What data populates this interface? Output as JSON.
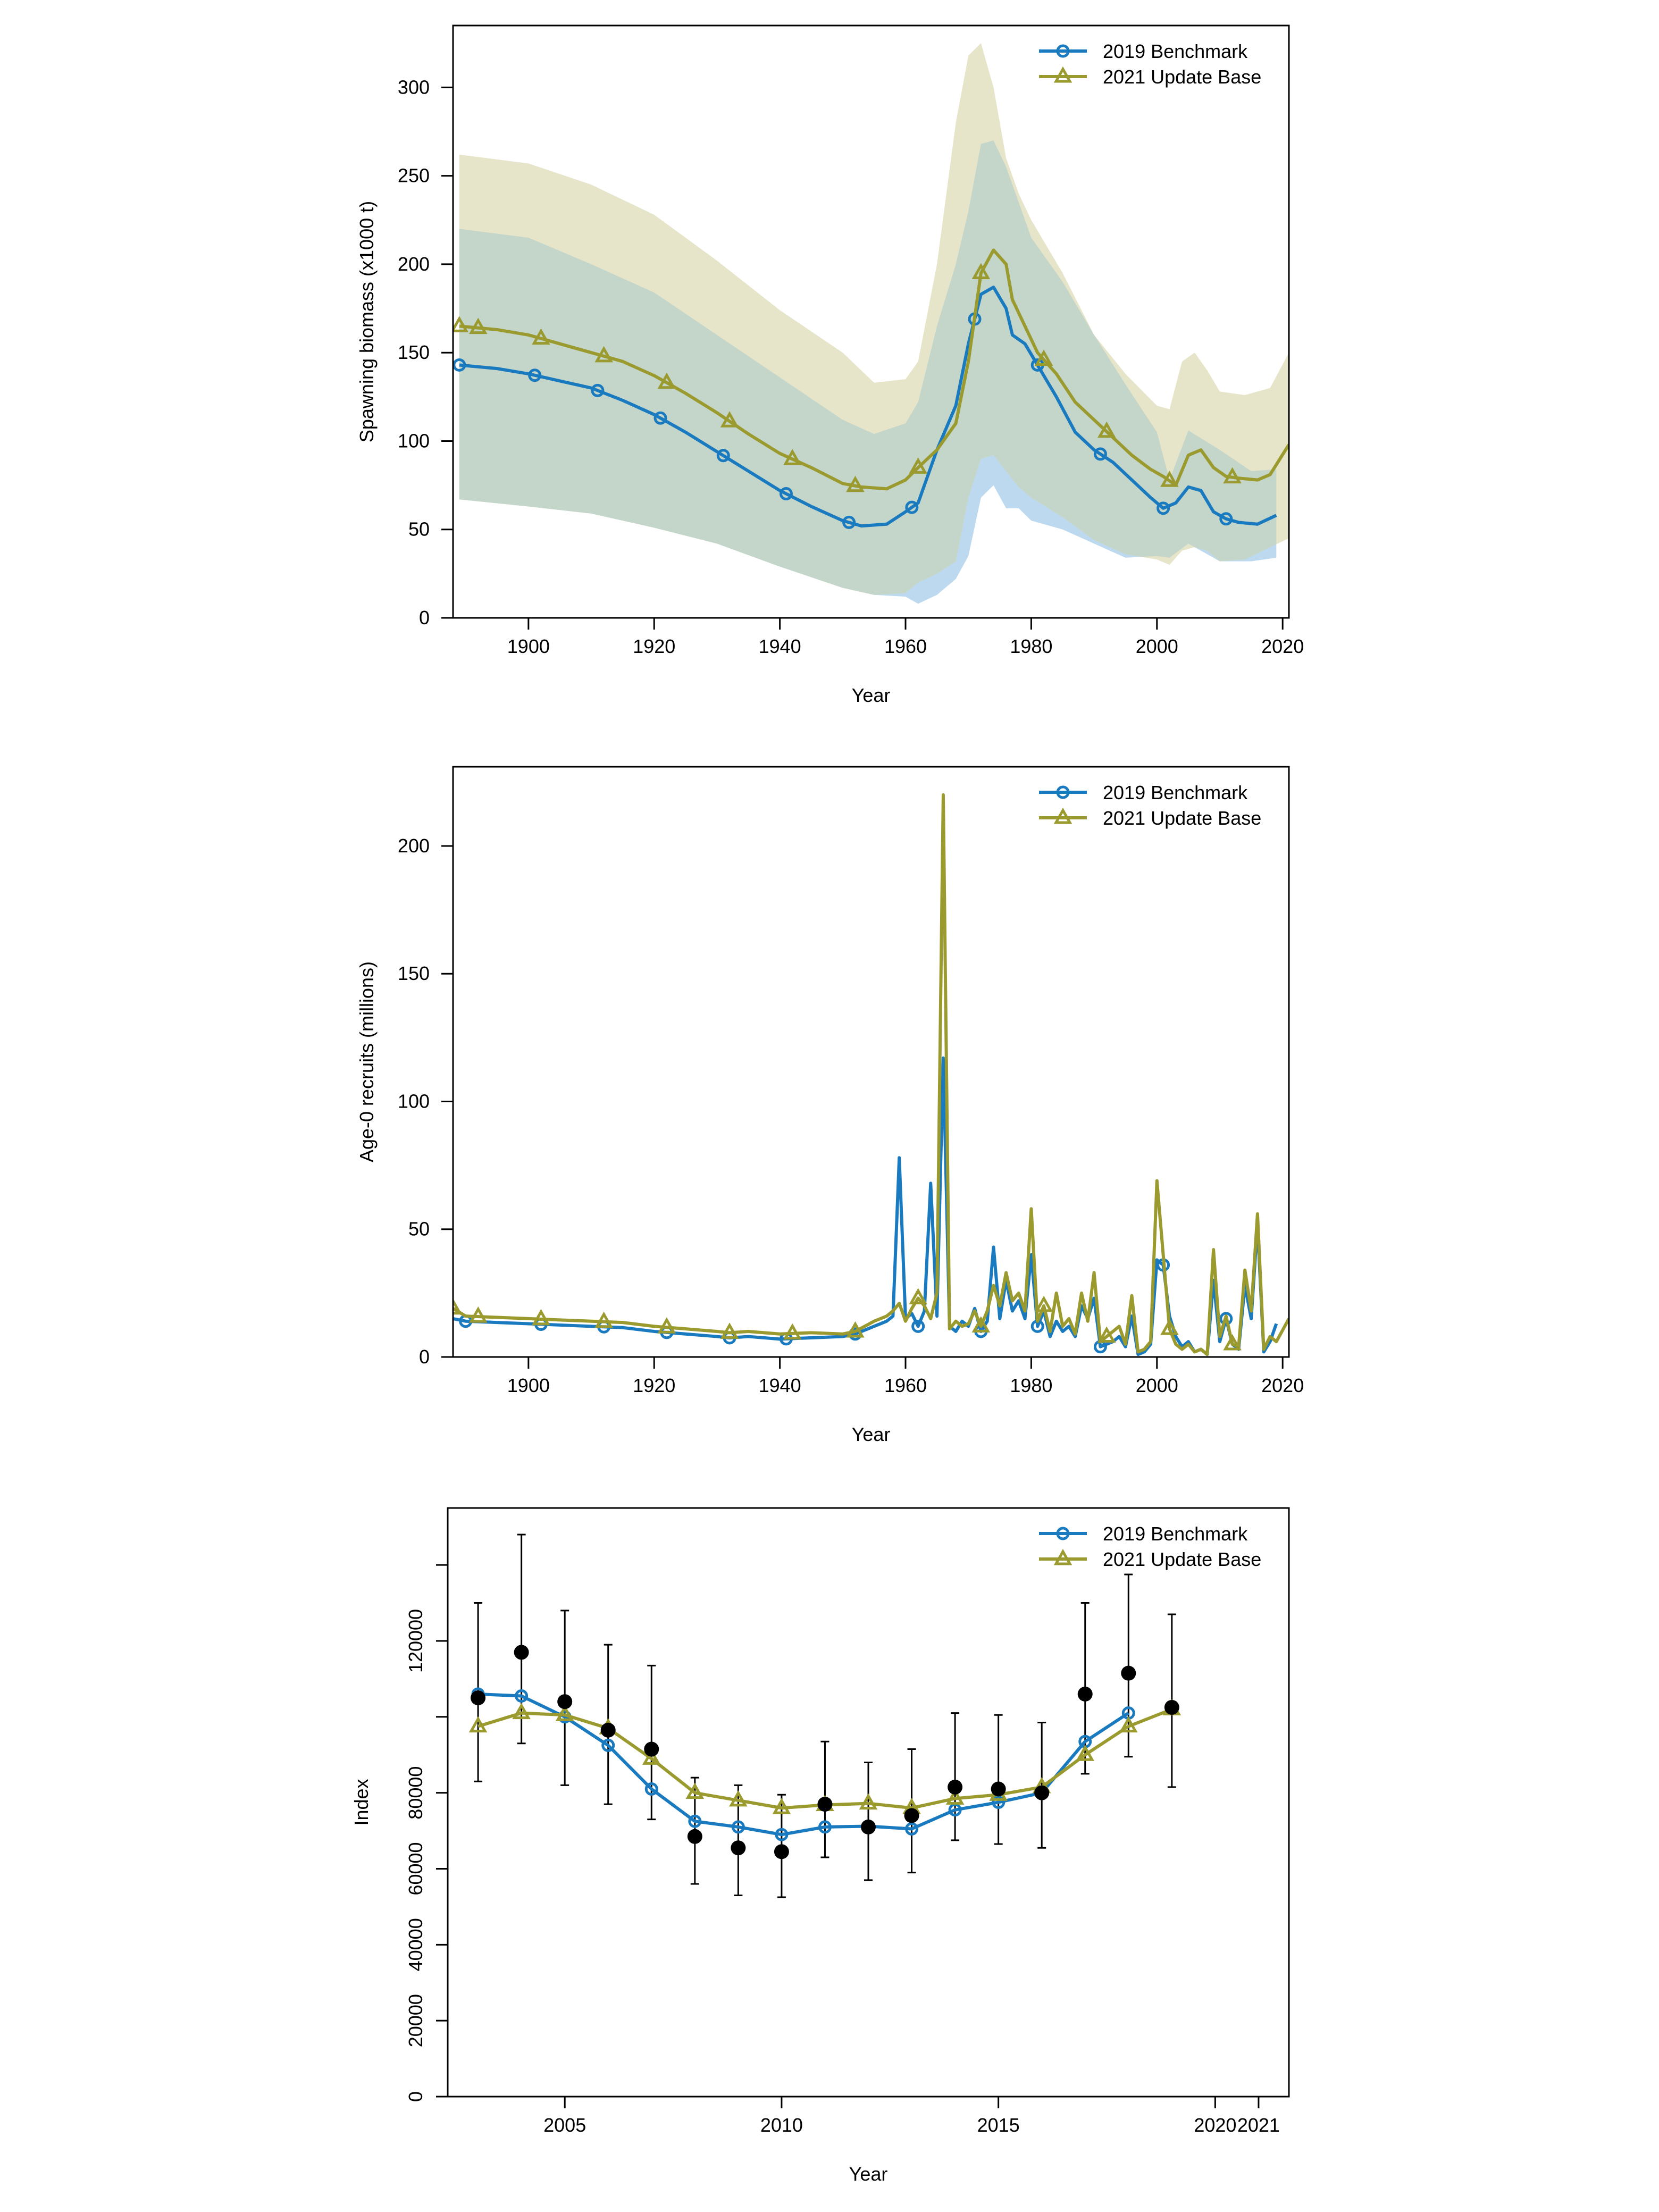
{
  "colors": {
    "benchmark": "#1a7abf",
    "update": "#9a9a2e",
    "benchmark_band": "#bcd9ef",
    "update_band": "#e6e4c9",
    "overlap_band": "#c3d6c9",
    "obs": "#000000"
  },
  "legend": {
    "position": "top-right",
    "labels": [
      "2019 Benchmark",
      "2021 Update Base"
    ],
    "markers": [
      "circle",
      "triangle"
    ]
  },
  "chart_data": [
    {
      "type": "line",
      "title": "",
      "xlabel": "Year",
      "ylabel": "Spawning biomass (x1000 t)",
      "xlim": [
        1888,
        2021
      ],
      "ylim": [
        0,
        335
      ],
      "xticks": [
        1900,
        1920,
        1940,
        1960,
        1980,
        2000,
        2020
      ],
      "yticks": [
        0,
        50,
        100,
        150,
        200,
        250,
        300
      ],
      "grid": false,
      "legend": "top-right",
      "series": [
        {
          "name": "2019 Benchmark",
          "marker": "circle",
          "x": [
            1889,
            1895,
            1900,
            1905,
            1910,
            1915,
            1920,
            1925,
            1930,
            1935,
            1940,
            1945,
            1950,
            1953,
            1957,
            1960,
            1962,
            1965,
            1968,
            1970,
            1972,
            1974,
            1976,
            1977,
            1979,
            1981,
            1984,
            1987,
            1990,
            1993,
            1996,
            1999,
            2001,
            2003,
            2005,
            2007,
            2009,
            2011,
            2013,
            2016,
            2019
          ],
          "y": [
            143,
            141,
            138,
            134,
            130,
            123,
            115,
            105,
            94,
            83,
            72,
            63,
            55,
            52,
            53,
            60,
            65,
            95,
            120,
            155,
            183,
            187,
            175,
            160,
            155,
            143,
            125,
            105,
            95,
            88,
            78,
            68,
            62,
            65,
            74,
            72,
            60,
            56,
            54,
            53,
            58
          ],
          "markers_at": [
            1889,
            1901,
            1911,
            1921,
            1931,
            1941,
            1951,
            1961,
            1971,
            1981,
            1991,
            2001,
            2011
          ],
          "ci_x": [
            1889,
            1900,
            1910,
            1920,
            1930,
            1940,
            1950,
            1955,
            1960,
            1962,
            1965,
            1968,
            1970,
            1972,
            1974,
            1976,
            1978,
            1980,
            1985,
            1990,
            1995,
            2000,
            2002,
            2005,
            2010,
            2015,
            2019
          ],
          "ci_lower": [
            67,
            63,
            59,
            51,
            42,
            29,
            17,
            13,
            12,
            8,
            13,
            22,
            35,
            68,
            75,
            62,
            62,
            55,
            50,
            42,
            34,
            35,
            34,
            42,
            32,
            32,
            34
          ],
          "ci_upper": [
            220,
            215,
            200,
            184,
            160,
            136,
            112,
            104,
            110,
            122,
            165,
            200,
            230,
            268,
            270,
            255,
            235,
            215,
            190,
            160,
            132,
            105,
            78,
            106,
            95,
            83,
            84
          ]
        },
        {
          "name": "2021 Update Base",
          "marker": "triangle",
          "x": [
            1889,
            1895,
            1900,
            1905,
            1910,
            1915,
            1920,
            1925,
            1930,
            1935,
            1940,
            1945,
            1950,
            1953,
            1957,
            1960,
            1962,
            1965,
            1968,
            1970,
            1972,
            1974,
            1976,
            1977,
            1979,
            1981,
            1984,
            1987,
            1990,
            1993,
            1996,
            1999,
            2001,
            2003,
            2005,
            2007,
            2009,
            2011,
            2013,
            2016,
            2018,
            2021
          ],
          "y": [
            165,
            163,
            160,
            155,
            150,
            145,
            137,
            127,
            116,
            104,
            93,
            85,
            76,
            74,
            73,
            78,
            85,
            95,
            110,
            145,
            195,
            208,
            200,
            180,
            165,
            150,
            138,
            122,
            112,
            102,
            92,
            84,
            80,
            75,
            92,
            95,
            85,
            80,
            79,
            78,
            81,
            98
          ],
          "markers_at": [
            1889,
            1892,
            1902,
            1912,
            1922,
            1932,
            1942,
            1952,
            1962,
            1972,
            1982,
            1992,
            2002,
            2012
          ],
          "ci_x": [
            1889,
            1900,
            1910,
            1920,
            1930,
            1940,
            1950,
            1955,
            1960,
            1962,
            1965,
            1968,
            1970,
            1972,
            1974,
            1976,
            1978,
            1980,
            1985,
            1990,
            1995,
            2000,
            2002,
            2004,
            2006,
            2008,
            2010,
            2014,
            2018,
            2021
          ],
          "ci_lower": [
            67,
            63,
            59,
            51,
            42,
            29,
            17,
            13,
            14,
            20,
            25,
            32,
            68,
            90,
            92,
            83,
            74,
            68,
            57,
            44,
            36,
            33,
            30,
            38,
            40,
            38,
            32,
            33,
            40,
            45
          ],
          "ci_upper": [
            262,
            257,
            245,
            228,
            202,
            174,
            150,
            133,
            135,
            145,
            200,
            280,
            318,
            325,
            300,
            260,
            240,
            225,
            195,
            160,
            138,
            120,
            118,
            145,
            150,
            140,
            128,
            126,
            130,
            150
          ]
        }
      ]
    },
    {
      "type": "line",
      "title": "",
      "xlabel": "Year",
      "ylabel": "Age-0 recruits (millions)",
      "xlim": [
        1888,
        2021
      ],
      "ylim": [
        0,
        231
      ],
      "xticks": [
        1900,
        1920,
        1940,
        1960,
        1980,
        2000,
        2020
      ],
      "yticks": [
        0,
        50,
        100,
        150,
        200
      ],
      "grid": false,
      "legend": "top-right",
      "series": [
        {
          "name": "2019 Benchmark",
          "marker": "circle",
          "x": [
            1888,
            1890,
            1895,
            1900,
            1905,
            1910,
            1915,
            1920,
            1925,
            1930,
            1932,
            1935,
            1940,
            1945,
            1950,
            1952,
            1955,
            1957,
            1958,
            1959,
            1960,
            1961,
            1962,
            1963,
            1964,
            1965,
            1966,
            1967,
            1968,
            1969,
            1970,
            1971,
            1972,
            1973,
            1974,
            1975,
            1976,
            1977,
            1978,
            1979,
            1980,
            1981,
            1982,
            1983,
            1984,
            1985,
            1986,
            1987,
            1988,
            1989,
            1990,
            1991,
            1992,
            1993,
            1994,
            1995,
            1996,
            1997,
            1998,
            1999,
            2000,
            2001,
            2002,
            2003,
            2004,
            2005,
            2006,
            2007,
            2008,
            2009,
            2010,
            2011,
            2012,
            2013,
            2014,
            2015,
            2016,
            2017,
            2018,
            2019
          ],
          "y": [
            15,
            14,
            13.5,
            13,
            12.5,
            12,
            11.5,
            10,
            9,
            8,
            7.5,
            8,
            7,
            7.5,
            8,
            9,
            12,
            14,
            16,
            78,
            15,
            17,
            12,
            18,
            68,
            16,
            117,
            12,
            10,
            14,
            12,
            19,
            10,
            14,
            43,
            15,
            30,
            18,
            22,
            15,
            40,
            12,
            18,
            8,
            14,
            10,
            12,
            8,
            20,
            15,
            23,
            4,
            5,
            6,
            8,
            4,
            16,
            1,
            2,
            5,
            38,
            36,
            16,
            8,
            4,
            6,
            2,
            3,
            1,
            30,
            6,
            15,
            5,
            3,
            28,
            15,
            52,
            2,
            6,
            13
          ],
          "markers_at": [
            1890,
            1902,
            1912,
            1922,
            1932,
            1941,
            1952,
            1962,
            1972,
            1981,
            1991,
            2001,
            2011
          ]
        },
        {
          "name": "2021 Update Base",
          "marker": "triangle",
          "x": [
            1888,
            1890,
            1895,
            1900,
            1905,
            1910,
            1915,
            1920,
            1925,
            1930,
            1932,
            1935,
            1940,
            1945,
            1950,
            1952,
            1955,
            1957,
            1958,
            1959,
            1960,
            1961,
            1962,
            1963,
            1964,
            1965,
            1966,
            1967,
            1968,
            1969,
            1970,
            1971,
            1972,
            1973,
            1974,
            1975,
            1976,
            1977,
            1978,
            1979,
            1980,
            1981,
            1982,
            1983,
            1984,
            1985,
            1986,
            1987,
            1988,
            1989,
            1990,
            1991,
            1992,
            1993,
            1994,
            1995,
            1996,
            1997,
            1998,
            1999,
            2000,
            2001,
            2002,
            2003,
            2004,
            2005,
            2006,
            2007,
            2008,
            2009,
            2010,
            2011,
            2012,
            2013,
            2014,
            2015,
            2016,
            2017,
            2018,
            2019,
            2021
          ],
          "y": [
            19,
            16,
            15.5,
            15,
            14.5,
            14,
            13.5,
            12,
            11,
            10,
            9.5,
            10,
            9,
            9.5,
            9,
            10,
            14,
            16,
            18,
            21,
            14,
            19,
            23,
            20,
            15,
            25,
            220,
            11,
            14,
            12,
            13,
            18,
            12,
            18,
            28,
            20,
            33,
            22,
            25,
            18,
            58,
            14,
            20,
            10,
            25,
            12,
            15,
            9,
            25,
            14,
            33,
            6,
            8,
            10,
            12,
            5,
            24,
            2,
            3,
            6,
            69,
            40,
            11,
            5,
            3,
            5,
            2,
            3,
            1,
            42,
            8,
            16,
            5,
            4,
            34,
            18,
            56,
            3,
            8,
            6,
            15
          ],
          "markers_at": [
            1888,
            1892,
            1902,
            1912,
            1922,
            1932,
            1942,
            1952,
            1962,
            1972,
            1982,
            1992,
            2002,
            2012
          ]
        }
      ]
    },
    {
      "type": "line",
      "title": "",
      "xlabel": "Year",
      "ylabel": "Index",
      "xlim": [
        2002.3,
        2021.7
      ],
      "ylim": [
        0,
        155000
      ],
      "xticks": [
        "2005",
        "2010",
        "2015",
        "2020",
        "2021"
      ],
      "xtick_values": [
        2005,
        2010,
        2015,
        2020,
        2021
      ],
      "yticks": [
        "0",
        "20000",
        "40000",
        "60000",
        "80000",
        "120000"
      ],
      "ytick_values": [
        0,
        20000,
        40000,
        60000,
        80000,
        120000
      ],
      "ytick_marks": [
        0,
        20000,
        40000,
        60000,
        80000,
        100000,
        120000,
        140000
      ],
      "grid": false,
      "legend": "top-right",
      "series": [
        {
          "name": "2019 Benchmark",
          "marker": "circle",
          "x": [
            2003,
            2004,
            2005,
            2006,
            2007,
            2008,
            2009,
            2010,
            2011,
            2012,
            2013,
            2014,
            2015,
            2016,
            2017,
            2018
          ],
          "y": [
            106000,
            105500,
            100000,
            92500,
            81000,
            72500,
            71000,
            69000,
            71000,
            71200,
            70500,
            75500,
            77500,
            80000,
            93500,
            101000
          ]
        },
        {
          "name": "2021 Update Base",
          "marker": "triangle",
          "x": [
            2003,
            2004,
            2005,
            2006,
            2007,
            2008,
            2009,
            2010,
            2011,
            2012,
            2013,
            2014,
            2015,
            2016,
            2017,
            2018,
            2019
          ],
          "y": [
            97500,
            101000,
            100500,
            97000,
            89000,
            80000,
            78000,
            76000,
            76800,
            77200,
            76000,
            78500,
            79500,
            81500,
            90000,
            97500,
            102000
          ]
        },
        {
          "name": "",
          "marker": "filled-circle",
          "x": [
            2003,
            2004,
            2005,
            2006,
            2007,
            2008,
            2009,
            2010,
            2011,
            2012,
            2013,
            2014,
            2015,
            2016,
            2017,
            2018,
            2019
          ],
          "y": [
            105000,
            117000,
            104000,
            96500,
            91500,
            68500,
            65500,
            64500,
            77000,
            71000,
            74000,
            81500,
            81000,
            80000,
            106000,
            111500,
            102500
          ],
          "err_low": [
            83000,
            93000,
            82000,
            77000,
            73000,
            56000,
            53000,
            52500,
            63000,
            57000,
            59000,
            67500,
            66500,
            65500,
            85000,
            89500,
            81500
          ],
          "err_high": [
            130000,
            148000,
            128000,
            119000,
            113500,
            84000,
            82000,
            79500,
            93500,
            88000,
            91500,
            101000,
            100500,
            98500,
            130000,
            137500,
            127000
          ]
        }
      ]
    }
  ]
}
